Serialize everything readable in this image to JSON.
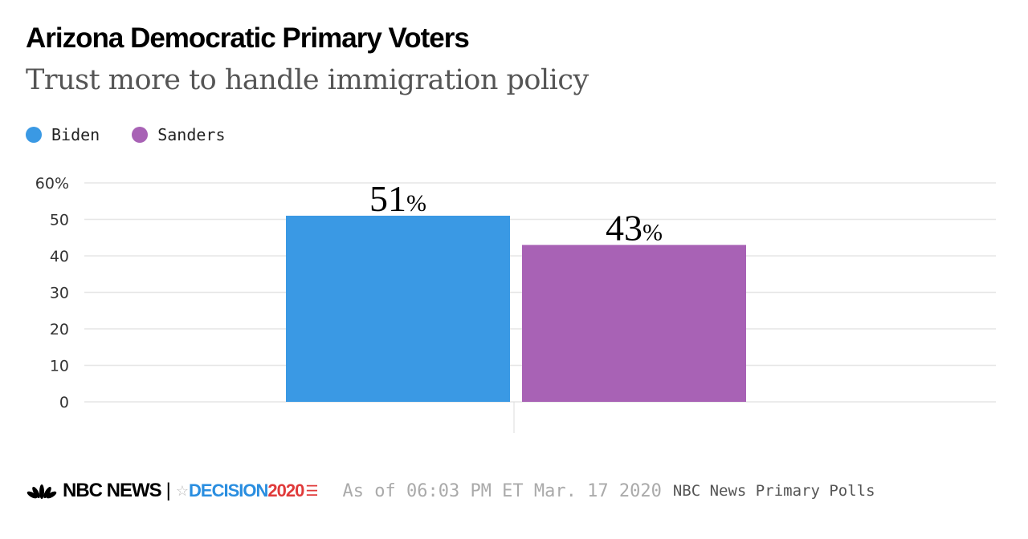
{
  "title": "Arizona Democratic Primary Voters",
  "subtitle": "Trust more to handle immigration policy",
  "legend": [
    {
      "label": "Biden",
      "color": "#3a99e4"
    },
    {
      "label": "Sanders",
      "color": "#a862b5"
    }
  ],
  "chart_data": {
    "type": "bar",
    "title": "Arizona Democratic Primary Voters",
    "subtitle": "Trust more to handle immigration policy",
    "categories": [
      "Biden",
      "Sanders"
    ],
    "values": [
      51,
      43
    ],
    "data_labels": [
      "51",
      "43"
    ],
    "data_label_suffix": "%",
    "colors": [
      "#3a99e4",
      "#a862b5"
    ],
    "ylim": [
      0,
      60
    ],
    "yticks": [
      0,
      10,
      20,
      30,
      40,
      50,
      60
    ],
    "ytick_labels": [
      "0",
      "10",
      "20",
      "30",
      "40",
      "50",
      "60%"
    ],
    "grid": true,
    "legend_position": "top-left"
  },
  "footer": {
    "brand": "NBC NEWS",
    "separator": "|",
    "decision": "DECISION",
    "year": "2020",
    "as_of": "As of 06:03 PM ET Mar. 17 2020",
    "source": "NBC News Primary Polls"
  }
}
